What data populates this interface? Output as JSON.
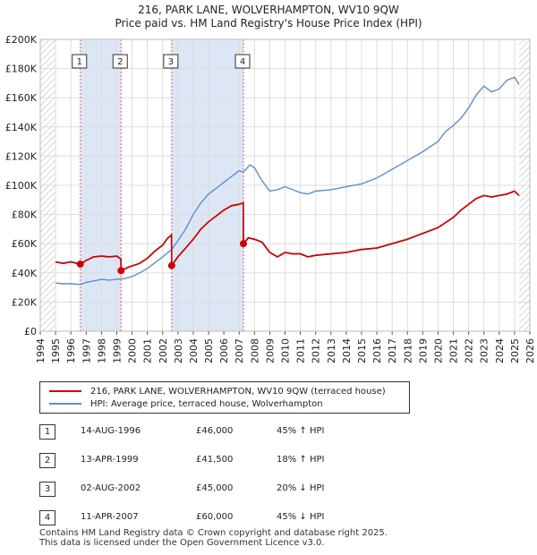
{
  "title_line1": "216, PARK LANE, WOLVERHAMPTON, WV10 9QW",
  "title_line2": "Price paid vs. HM Land Registry's House Price Index (HPI)",
  "colors": {
    "property": "#cc0000",
    "hpi": "#5b8fd0",
    "shade": "#dce6f5"
  },
  "legend": {
    "property": "216, PARK LANE, WOLVERHAMPTON, WV10 9QW (terraced house)",
    "hpi": "HPI: Average price, terraced house, Wolverhampton"
  },
  "sales": [
    {
      "num": "1",
      "date": "14-AUG-1996",
      "price": "£46,000",
      "hpi": "45% ↑ HPI",
      "year": 1996.62,
      "value": 46000
    },
    {
      "num": "2",
      "date": "13-APR-1999",
      "price": "£41,500",
      "hpi": "18% ↑ HPI",
      "year": 1999.28,
      "value": 41500
    },
    {
      "num": "3",
      "date": "02-AUG-2002",
      "price": "£45,000",
      "hpi": "20% ↓ HPI",
      "year": 2002.59,
      "value": 45000
    },
    {
      "num": "4",
      "date": "11-APR-2007",
      "price": "£60,000",
      "hpi": "45% ↓ HPI",
      "year": 2007.28,
      "value": 60000
    }
  ],
  "footer": {
    "line1": "Contains HM Land Registry data © Crown copyright and database right 2025.",
    "line2": "This data is licensed under the Open Government Licence v3.0."
  },
  "chart_data": {
    "type": "line",
    "title": "216, PARK LANE, WOLVERHAMPTON, WV10 9QW — Price paid vs. HM Land Registry's House Price Index (HPI)",
    "xlim": [
      1994,
      2026
    ],
    "ylim": [
      0,
      200000
    ],
    "xticks": [
      "1994",
      "1995",
      "1996",
      "1997",
      "1998",
      "1999",
      "2000",
      "2001",
      "2002",
      "2003",
      "2004",
      "2005",
      "2006",
      "2007",
      "2008",
      "2009",
      "2010",
      "2011",
      "2012",
      "2013",
      "2014",
      "2015",
      "2016",
      "2017",
      "2018",
      "2019",
      "2020",
      "2021",
      "2022",
      "2023",
      "2024",
      "2025",
      "2026"
    ],
    "yticks": [
      {
        "value": 0,
        "label": "£0"
      },
      {
        "value": 20000,
        "label": "£20K"
      },
      {
        "value": 40000,
        "label": "£40K"
      },
      {
        "value": 60000,
        "label": "£60K"
      },
      {
        "value": 80000,
        "label": "£80K"
      },
      {
        "value": 100000,
        "label": "£100K"
      },
      {
        "value": 120000,
        "label": "£120K"
      },
      {
        "value": 140000,
        "label": "£140K"
      },
      {
        "value": 160000,
        "label": "£160K"
      },
      {
        "value": 180000,
        "label": "£180K"
      },
      {
        "value": 200000,
        "label": "£200K"
      }
    ],
    "shaded_ranges": [
      [
        1996.62,
        1999.28
      ],
      [
        2002.59,
        2007.28
      ]
    ],
    "hatched_ranges": [
      [
        1994,
        1995
      ],
      [
        2025.3,
        2026
      ]
    ],
    "series": [
      {
        "name": "216, PARK LANE, WOLVERHAMPTON, WV10 9QW (terraced house)",
        "color": "#cc0000",
        "points": [
          [
            1995.0,
            47500
          ],
          [
            1995.5,
            46500
          ],
          [
            1996.0,
            47500
          ],
          [
            1996.62,
            46000
          ],
          [
            1997.0,
            48500
          ],
          [
            1997.5,
            51000
          ],
          [
            1998.0,
            51500
          ],
          [
            1998.5,
            51000
          ],
          [
            1999.0,
            51500
          ],
          [
            1999.27,
            49500
          ],
          [
            1999.28,
            41500
          ],
          [
            1999.8,
            44000
          ],
          [
            2000.5,
            46500
          ],
          [
            2001.0,
            50000
          ],
          [
            2001.5,
            55000
          ],
          [
            2002.0,
            59000
          ],
          [
            2002.3,
            63500
          ],
          [
            2002.58,
            66000
          ],
          [
            2002.59,
            45000
          ],
          [
            2003.0,
            51000
          ],
          [
            2003.5,
            57000
          ],
          [
            2004.0,
            63000
          ],
          [
            2004.5,
            70000
          ],
          [
            2005.0,
            75000
          ],
          [
            2005.5,
            79000
          ],
          [
            2006.0,
            83000
          ],
          [
            2006.5,
            86000
          ],
          [
            2007.0,
            87000
          ],
          [
            2007.27,
            88000
          ],
          [
            2007.28,
            60000
          ],
          [
            2007.6,
            64000
          ],
          [
            2008.0,
            63000
          ],
          [
            2008.5,
            61000
          ],
          [
            2009.0,
            54000
          ],
          [
            2009.5,
            51000
          ],
          [
            2010.0,
            54000
          ],
          [
            2010.5,
            53000
          ],
          [
            2011.0,
            53000
          ],
          [
            2011.5,
            51000
          ],
          [
            2012.0,
            52000
          ],
          [
            2013.0,
            53000
          ],
          [
            2014.0,
            54000
          ],
          [
            2015.0,
            56000
          ],
          [
            2016.0,
            57000
          ],
          [
            2017.0,
            60000
          ],
          [
            2018.0,
            63000
          ],
          [
            2019.0,
            67000
          ],
          [
            2020.0,
            71000
          ],
          [
            2021.0,
            78000
          ],
          [
            2021.5,
            83000
          ],
          [
            2022.0,
            87000
          ],
          [
            2022.5,
            91000
          ],
          [
            2023.0,
            93000
          ],
          [
            2023.5,
            92000
          ],
          [
            2024.0,
            93000
          ],
          [
            2024.5,
            94000
          ],
          [
            2025.0,
            96000
          ],
          [
            2025.3,
            93000
          ]
        ]
      },
      {
        "name": "HPI: Average price, terraced house, Wolverhampton",
        "color": "#5b8fd0",
        "points": [
          [
            1995.0,
            33000
          ],
          [
            1995.5,
            32500
          ],
          [
            1996.0,
            32500
          ],
          [
            1996.62,
            32000
          ],
          [
            1997.0,
            33500
          ],
          [
            1997.5,
            34500
          ],
          [
            1998.0,
            35500
          ],
          [
            1998.5,
            35000
          ],
          [
            1999.0,
            35500
          ],
          [
            1999.5,
            36000
          ],
          [
            2000.0,
            37500
          ],
          [
            2000.5,
            40000
          ],
          [
            2001.0,
            43000
          ],
          [
            2001.5,
            47000
          ],
          [
            2002.0,
            51000
          ],
          [
            2002.59,
            56000
          ],
          [
            2003.0,
            62000
          ],
          [
            2003.5,
            70000
          ],
          [
            2004.0,
            80000
          ],
          [
            2004.5,
            88000
          ],
          [
            2005.0,
            94000
          ],
          [
            2005.5,
            98000
          ],
          [
            2006.0,
            102000
          ],
          [
            2006.5,
            106000
          ],
          [
            2007.0,
            110000
          ],
          [
            2007.28,
            109000
          ],
          [
            2007.7,
            114000
          ],
          [
            2008.0,
            112000
          ],
          [
            2008.5,
            103000
          ],
          [
            2009.0,
            96000
          ],
          [
            2009.5,
            97000
          ],
          [
            2010.0,
            99000
          ],
          [
            2010.5,
            97000
          ],
          [
            2011.0,
            95000
          ],
          [
            2011.5,
            94000
          ],
          [
            2012.0,
            96000
          ],
          [
            2013.0,
            97000
          ],
          [
            2014.0,
            99000
          ],
          [
            2015.0,
            101000
          ],
          [
            2016.0,
            105000
          ],
          [
            2017.0,
            111000
          ],
          [
            2018.0,
            117000
          ],
          [
            2019.0,
            123000
          ],
          [
            2020.0,
            130000
          ],
          [
            2020.5,
            137000
          ],
          [
            2021.0,
            141000
          ],
          [
            2021.5,
            146000
          ],
          [
            2022.0,
            153000
          ],
          [
            2022.5,
            162000
          ],
          [
            2023.0,
            168000
          ],
          [
            2023.5,
            164000
          ],
          [
            2024.0,
            166000
          ],
          [
            2024.5,
            172000
          ],
          [
            2025.0,
            174000
          ],
          [
            2025.3,
            169000
          ]
        ]
      }
    ]
  }
}
